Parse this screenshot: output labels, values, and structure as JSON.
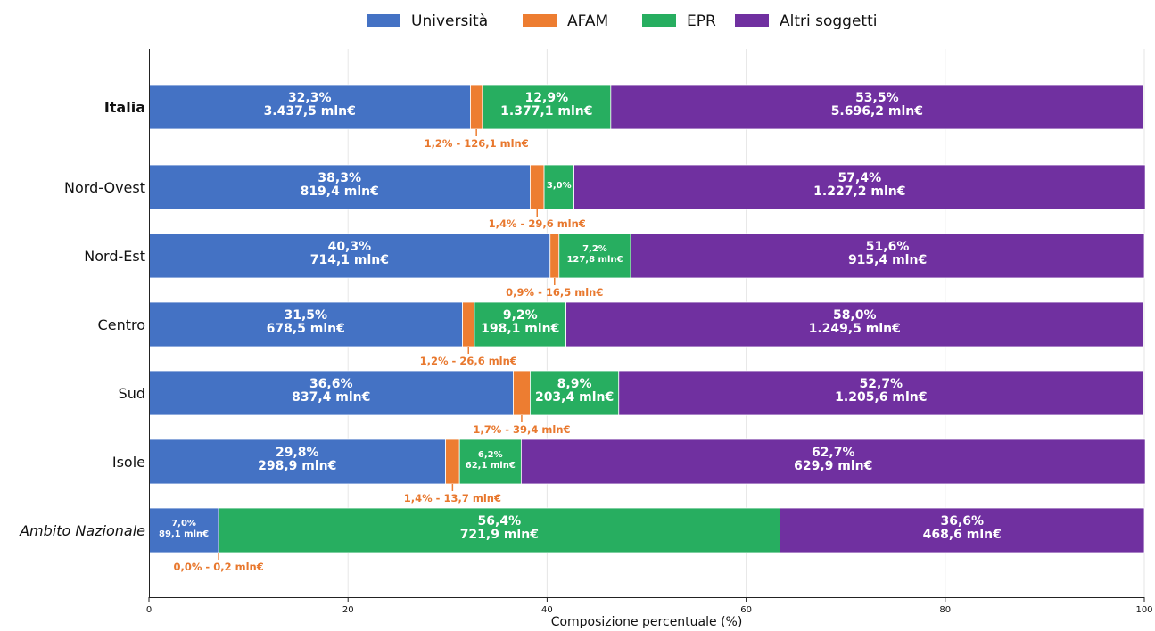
{
  "colors": {
    "universita": "#4472C4",
    "afam": "#ED7D31",
    "epr": "#27AE60",
    "altri": "#7030A0"
  },
  "legend": [
    "Università",
    "AFAM",
    "EPR",
    "Altri soggetti"
  ],
  "chart_data": {
    "type": "bar",
    "orientation": "horizontal",
    "stacked": true,
    "xlabel": "Composizione percentuale (%)",
    "ylabel": "",
    "xlim": [
      0,
      100
    ],
    "xticks": [
      "0",
      "20",
      "40",
      "60",
      "80",
      "100"
    ],
    "grid": true,
    "legend_position": "top-center",
    "categories": [
      "Italia",
      "Nord-Ovest",
      "Nord-Est",
      "Centro",
      "Sud",
      "Isole",
      "Ambito Nazionale"
    ],
    "category_styles": [
      "bold",
      "normal",
      "normal",
      "normal",
      "normal",
      "normal",
      "italic"
    ],
    "series": [
      {
        "name": "Università",
        "values": [
          32.3,
          38.3,
          40.3,
          31.5,
          36.6,
          29.8,
          7.0
        ],
        "labels": [
          [
            "32,3%",
            "3.437,5 mln€"
          ],
          [
            "38,3%",
            "819,4 mln€"
          ],
          [
            "40,3%",
            "714,1 mln€"
          ],
          [
            "31,5%",
            "678,5 mln€"
          ],
          [
            "36,6%",
            "837,4 mln€"
          ],
          [
            "29,8%",
            "298,9 mln€"
          ],
          [
            "7,0%",
            "89,1 mln€"
          ]
        ]
      },
      {
        "name": "AFAM",
        "values": [
          1.2,
          1.4,
          0.9,
          1.2,
          1.7,
          1.4,
          0.0
        ],
        "labels": [
          "1,2% - 126,1 mln€",
          "1,4% - 29,6 mln€",
          "0,9% - 16,5 mln€",
          "1,2% - 26,6 mln€",
          "1,7% - 39,4 mln€",
          "1,4% - 13,7 mln€",
          "0,0% - 0,2 mln€"
        ]
      },
      {
        "name": "EPR",
        "values": [
          12.9,
          3.0,
          7.2,
          9.2,
          8.9,
          6.2,
          56.4
        ],
        "labels": [
          [
            "12,9%",
            "1.377,1 mln€"
          ],
          [
            "3,0%"
          ],
          [
            "7,2%",
            "127,8 mln€"
          ],
          [
            "9,2%",
            "198,1 mln€"
          ],
          [
            "8,9%",
            "203,4 mln€"
          ],
          [
            "6,2%",
            "62,1 mln€"
          ],
          [
            "56,4%",
            "721,9 mln€"
          ]
        ]
      },
      {
        "name": "Altri soggetti",
        "values": [
          53.5,
          57.4,
          51.6,
          58.0,
          52.7,
          62.7,
          36.6
        ],
        "labels": [
          [
            "53,5%",
            "5.696,2 mln€"
          ],
          [
            "57,4%",
            "1.227,2 mln€"
          ],
          [
            "51,6%",
            "915,4 mln€"
          ],
          [
            "58,0%",
            "1.249,5 mln€"
          ],
          [
            "52,7%",
            "1.205,6 mln€"
          ],
          [
            "62,7%",
            "629,9 mln€"
          ],
          [
            "36,6%",
            "468,6 mln€"
          ]
        ]
      }
    ]
  }
}
